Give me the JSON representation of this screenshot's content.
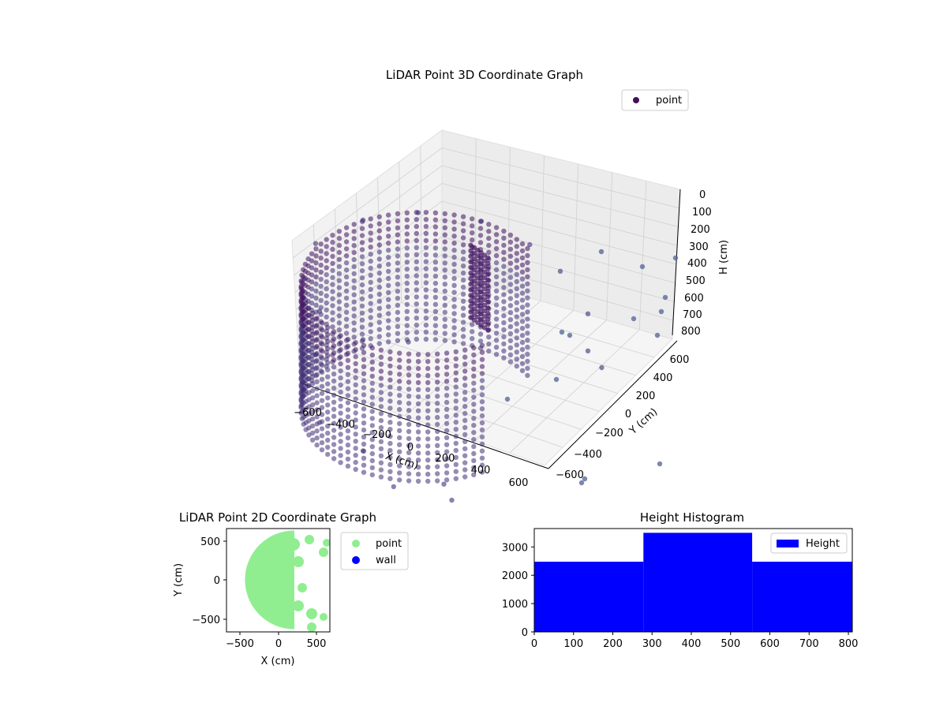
{
  "colors": {
    "point3d": "#3f2e74",
    "point3d_dark": "#40105f",
    "point2d": "#90ee90",
    "wall": "#0000ff",
    "histogram": "#0000ff",
    "pane": "#f2f2f2",
    "grid": "#d0d0d0"
  },
  "chart_data": [
    {
      "type": "scatter",
      "title": "LiDAR Point 3D Coordinate Graph",
      "xlabel": "X (cm)",
      "ylabel": "Y (cm)",
      "zlabel": "H (cm)",
      "xlim": [
        -700,
        700
      ],
      "ylim": [
        -700,
        700
      ],
      "zlim": [
        0,
        800
      ],
      "z_inverted": true,
      "x_ticks": [
        "−600",
        "−400",
        "−200",
        "0",
        "200",
        "400",
        "600"
      ],
      "y_ticks": [
        "−600",
        "−400",
        "−200",
        "0",
        "200",
        "400",
        "600"
      ],
      "z_ticks": [
        "0",
        "100",
        "200",
        "300",
        "400",
        "500",
        "600",
        "700",
        "800"
      ],
      "legend": [
        {
          "label": "point",
          "color": "#40105f"
        }
      ],
      "legend_position": "top-right",
      "grid": true,
      "series": [
        {
          "name": "point",
          "description_shape": "cylindrical wall of points",
          "points": [
            {
              "x": -600,
              "y": 0,
              "h": 100
            },
            {
              "x": -500,
              "y": 300,
              "h": 100
            },
            {
              "x": -300,
              "y": 500,
              "h": 100
            },
            {
              "x": 0,
              "y": 600,
              "h": 100
            },
            {
              "x": 300,
              "y": 550,
              "h": 100
            },
            {
              "x": 500,
              "y": 500,
              "h": 150
            },
            {
              "x": -500,
              "y": -300,
              "h": 100
            },
            {
              "x": -300,
              "y": -500,
              "h": 100
            },
            {
              "x": 0,
              "y": -600,
              "h": 100
            },
            {
              "x": 200,
              "y": -500,
              "h": 100
            },
            {
              "x": -600,
              "y": 0,
              "h": 700
            },
            {
              "x": -500,
              "y": -300,
              "h": 700
            },
            {
              "x": -300,
              "y": -500,
              "h": 700
            },
            {
              "x": 0,
              "y": -600,
              "h": 700
            },
            {
              "x": 600,
              "y": 600,
              "h": 400
            },
            {
              "x": 600,
              "y": 600,
              "h": 600
            },
            {
              "x": 650,
              "y": 650,
              "h": 700
            },
            {
              "x": 400,
              "y": -500,
              "h": 800
            },
            {
              "x": 500,
              "y": -600,
              "h": 800
            },
            {
              "x": 200,
              "y": -650,
              "h": 800
            }
          ]
        }
      ]
    },
    {
      "type": "scatter",
      "title": "LiDAR Point 2D Coordinate Graph",
      "xlabel": "X (cm)",
      "ylabel": "Y (cm)",
      "xlim": [
        -680,
        680
      ],
      "ylim": [
        -680,
        680
      ],
      "x_ticks": [
        "−500",
        "0",
        "500"
      ],
      "y_ticks": [
        "500",
        "0",
        "−500"
      ],
      "legend": [
        {
          "label": "point",
          "color": "#90ee90"
        },
        {
          "label": "wall",
          "color": "#0000ff"
        }
      ],
      "legend_position": "outside right",
      "series": [
        {
          "name": "point",
          "description_shape": "filled disc of points"
        },
        {
          "name": "wall",
          "points": []
        }
      ]
    },
    {
      "type": "bar",
      "title": "Height Histogram",
      "xlim": [
        0,
        810
      ],
      "ylim": [
        0,
        3650
      ],
      "x_ticks": [
        "0",
        "100",
        "200",
        "300",
        "400",
        "500",
        "600",
        "700",
        "800"
      ],
      "y_ticks": [
        "0",
        "1000",
        "2000",
        "3000"
      ],
      "legend": [
        {
          "label": "Height",
          "color": "#0000ff"
        }
      ],
      "legend_position": "top-right",
      "bins": [
        {
          "from": 0,
          "to": 278,
          "count": 2480
        },
        {
          "from": 278,
          "to": 555,
          "count": 3500
        },
        {
          "from": 555,
          "to": 810,
          "count": 2480
        }
      ]
    }
  ]
}
